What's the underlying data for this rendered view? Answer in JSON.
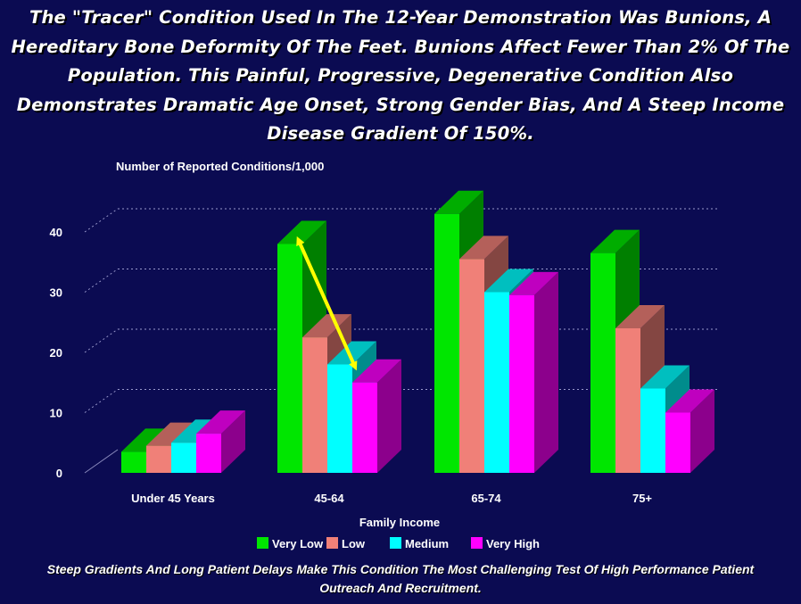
{
  "headline": "The \"Tracer\" Condition Used In The 12-Year Demonstration Was Bunions, A Hereditary Bone Deformity Of The Feet. Bunions Affect Fewer Than 2% Of The Population. This Painful, Progressive, Degenerative Condition Also Demonstrates Dramatic Age Onset, Strong Gender Bias, And A Steep Income Disease Gradient Of 150%.",
  "footnote": "Steep Gradients And Long Patient Delays Make This Condition The Most Challenging Test Of High Performance Patient Outreach And Recruitment.",
  "chart_data": {
    "type": "bar",
    "ylabel": "Number of Reported Conditions/1,000",
    "xlabel": "Family Income",
    "categories": [
      "Under 45 Years",
      "45-64",
      "65-74",
      "75+"
    ],
    "yticks": [
      0,
      10,
      20,
      30,
      40
    ],
    "ylim": [
      0,
      45
    ],
    "grid": true,
    "legend_position": "bottom",
    "series": [
      {
        "name": "Very Low",
        "color": "#00e600",
        "values": [
          3.5,
          38,
          43,
          36.5
        ]
      },
      {
        "name": "Low",
        "color": "#f08078",
        "values": [
          4.5,
          22.5,
          35.5,
          24
        ]
      },
      {
        "name": "Medium",
        "color": "#00ffff",
        "values": [
          5,
          18,
          30,
          14
        ]
      },
      {
        "name": "Very High",
        "color": "#ff00ff",
        "values": [
          6.5,
          15,
          29.5,
          10
        ]
      }
    ],
    "annotations": [
      {
        "type": "arrow",
        "color": "#ffff00",
        "from": {
          "category": "45-64",
          "series": "Very Low"
        },
        "to": {
          "category": "45-64",
          "series": "Very High"
        }
      }
    ]
  }
}
